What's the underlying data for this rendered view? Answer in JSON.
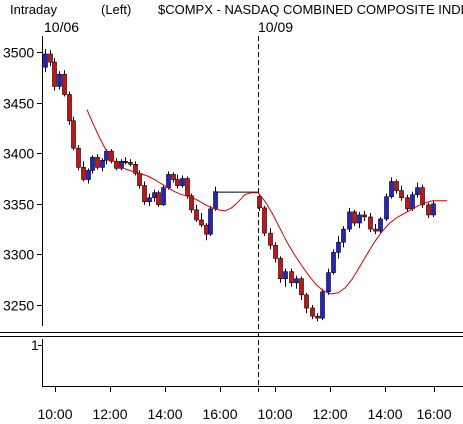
{
  "header": {
    "period": "Intraday",
    "scale_side": "(Left)",
    "symbol_title": "$COMPX - NASDAQ COMBINED COMPOSITE INDEX"
  },
  "colors": {
    "up_candle": "#2222cc",
    "down_candle": "#cc1111",
    "moving_average": "#dd0000",
    "axis": "#000000",
    "background": "#ffffff"
  },
  "chart_data": {
    "type": "candlestick",
    "title": "$COMPX - NASDAQ COMBINED COMPOSITE INDEX",
    "session_markers": [
      "10/06",
      "10/09"
    ],
    "ylim": [
      3225,
      3510
    ],
    "y_ticks": [
      "3500",
      "3450",
      "3400",
      "3350",
      "3300",
      "3250"
    ],
    "y_tick_values": [
      3500,
      3450,
      3400,
      3350,
      3300,
      3250
    ],
    "x_tick_labels": [
      "10:00",
      "12:00",
      "14:00",
      "16:00",
      "10:00",
      "12:00",
      "14:00",
      "16:00"
    ],
    "grid": false,
    "series": [
      {
        "day": "10/06",
        "bars": [
          {
            "o": 3485,
            "h": 3503,
            "l": 3480,
            "c": 3498
          },
          {
            "o": 3498,
            "h": 3502,
            "l": 3486,
            "c": 3490
          },
          {
            "o": 3490,
            "h": 3494,
            "l": 3462,
            "c": 3466
          },
          {
            "o": 3466,
            "h": 3481,
            "l": 3463,
            "c": 3478
          },
          {
            "o": 3478,
            "h": 3482,
            "l": 3456,
            "c": 3458
          },
          {
            "o": 3458,
            "h": 3461,
            "l": 3428,
            "c": 3432
          },
          {
            "o": 3432,
            "h": 3436,
            "l": 3403,
            "c": 3405
          },
          {
            "o": 3405,
            "h": 3408,
            "l": 3383,
            "c": 3386
          },
          {
            "o": 3386,
            "h": 3392,
            "l": 3372,
            "c": 3374
          },
          {
            "o": 3374,
            "h": 3385,
            "l": 3370,
            "c": 3383
          },
          {
            "o": 3383,
            "h": 3398,
            "l": 3380,
            "c": 3396
          },
          {
            "o": 3396,
            "h": 3399,
            "l": 3384,
            "c": 3386
          },
          {
            "o": 3386,
            "h": 3395,
            "l": 3382,
            "c": 3393
          },
          {
            "o": 3393,
            "h": 3404,
            "l": 3389,
            "c": 3402
          },
          {
            "o": 3402,
            "h": 3404,
            "l": 3390,
            "c": 3392
          },
          {
            "o": 3392,
            "h": 3395,
            "l": 3383,
            "c": 3385
          },
          {
            "o": 3385,
            "h": 3394,
            "l": 3383,
            "c": 3392
          },
          {
            "o": 3392,
            "h": 3396,
            "l": 3389,
            "c": 3391
          },
          {
            "o": 3391,
            "h": 3394,
            "l": 3387,
            "c": 3389
          },
          {
            "o": 3389,
            "h": 3392,
            "l": 3378,
            "c": 3380
          },
          {
            "o": 3380,
            "h": 3383,
            "l": 3365,
            "c": 3368
          },
          {
            "o": 3368,
            "h": 3372,
            "l": 3349,
            "c": 3352
          },
          {
            "o": 3352,
            "h": 3360,
            "l": 3348,
            "c": 3356
          },
          {
            "o": 3356,
            "h": 3364,
            "l": 3352,
            "c": 3361
          },
          {
            "o": 3361,
            "h": 3363,
            "l": 3347,
            "c": 3349
          },
          {
            "o": 3349,
            "h": 3368,
            "l": 3348,
            "c": 3366
          },
          {
            "o": 3366,
            "h": 3382,
            "l": 3364,
            "c": 3379
          },
          {
            "o": 3379,
            "h": 3381,
            "l": 3371,
            "c": 3374
          },
          {
            "o": 3374,
            "h": 3379,
            "l": 3365,
            "c": 3368
          },
          {
            "o": 3368,
            "h": 3378,
            "l": 3366,
            "c": 3375
          },
          {
            "o": 3375,
            "h": 3377,
            "l": 3355,
            "c": 3358
          },
          {
            "o": 3358,
            "h": 3360,
            "l": 3341,
            "c": 3344
          },
          {
            "o": 3344,
            "h": 3349,
            "l": 3332,
            "c": 3334
          },
          {
            "o": 3334,
            "h": 3341,
            "l": 3327,
            "c": 3329
          },
          {
            "o": 3329,
            "h": 3331,
            "l": 3314,
            "c": 3320
          },
          {
            "o": 3320,
            "h": 3348,
            "l": 3318,
            "c": 3345
          },
          {
            "o": 3345,
            "h": 3367,
            "l": 3343,
            "c": 3362
          }
        ]
      },
      {
        "day": "10/09",
        "bars": [
          {
            "o": 3357,
            "h": 3359,
            "l": 3343,
            "c": 3346
          },
          {
            "o": 3346,
            "h": 3348,
            "l": 3318,
            "c": 3321
          },
          {
            "o": 3321,
            "h": 3326,
            "l": 3305,
            "c": 3309
          },
          {
            "o": 3309,
            "h": 3312,
            "l": 3292,
            "c": 3296
          },
          {
            "o": 3296,
            "h": 3298,
            "l": 3272,
            "c": 3276
          },
          {
            "o": 3276,
            "h": 3286,
            "l": 3268,
            "c": 3283
          },
          {
            "o": 3283,
            "h": 3286,
            "l": 3268,
            "c": 3272
          },
          {
            "o": 3272,
            "h": 3279,
            "l": 3266,
            "c": 3276
          },
          {
            "o": 3276,
            "h": 3278,
            "l": 3255,
            "c": 3260
          },
          {
            "o": 3260,
            "h": 3262,
            "l": 3242,
            "c": 3247
          },
          {
            "o": 3247,
            "h": 3250,
            "l": 3236,
            "c": 3239
          },
          {
            "o": 3239,
            "h": 3242,
            "l": 3234,
            "c": 3237
          },
          {
            "o": 3237,
            "h": 3266,
            "l": 3235,
            "c": 3263
          },
          {
            "o": 3263,
            "h": 3286,
            "l": 3260,
            "c": 3282
          },
          {
            "o": 3282,
            "h": 3305,
            "l": 3280,
            "c": 3302
          },
          {
            "o": 3302,
            "h": 3318,
            "l": 3296,
            "c": 3312
          },
          {
            "o": 3312,
            "h": 3328,
            "l": 3307,
            "c": 3325
          },
          {
            "o": 3325,
            "h": 3346,
            "l": 3322,
            "c": 3342
          },
          {
            "o": 3342,
            "h": 3344,
            "l": 3328,
            "c": 3331
          },
          {
            "o": 3331,
            "h": 3342,
            "l": 3326,
            "c": 3339
          },
          {
            "o": 3339,
            "h": 3343,
            "l": 3333,
            "c": 3337
          },
          {
            "o": 3337,
            "h": 3341,
            "l": 3322,
            "c": 3325
          },
          {
            "o": 3325,
            "h": 3330,
            "l": 3320,
            "c": 3323
          },
          {
            "o": 3323,
            "h": 3337,
            "l": 3321,
            "c": 3335
          },
          {
            "o": 3335,
            "h": 3360,
            "l": 3333,
            "c": 3357
          },
          {
            "o": 3357,
            "h": 3376,
            "l": 3355,
            "c": 3372
          },
          {
            "o": 3372,
            "h": 3374,
            "l": 3360,
            "c": 3363
          },
          {
            "o": 3363,
            "h": 3368,
            "l": 3353,
            "c": 3356
          },
          {
            "o": 3356,
            "h": 3359,
            "l": 3342,
            "c": 3345
          },
          {
            "o": 3345,
            "h": 3362,
            "l": 3343,
            "c": 3359
          },
          {
            "o": 3359,
            "h": 3371,
            "l": 3356,
            "c": 3366
          },
          {
            "o": 3366,
            "h": 3369,
            "l": 3346,
            "c": 3349
          },
          {
            "o": 3349,
            "h": 3351,
            "l": 3336,
            "c": 3339
          },
          {
            "o": 3339,
            "h": 3353,
            "l": 3337,
            "c": 3350
          }
        ]
      }
    ],
    "moving_average": {
      "day1": [
        3443,
        3428,
        3414,
        3402,
        3393,
        3387,
        3384,
        3382,
        3380,
        3378,
        3375,
        3371,
        3367,
        3363,
        3360,
        3358,
        3356,
        3353,
        3349,
        3346,
        3344,
        3343,
        3346,
        3352,
        3359,
        3361,
        3361
      ],
      "day2": [
        3361,
        3352,
        3340,
        3326,
        3312,
        3300,
        3289,
        3279,
        3270,
        3264,
        3261,
        3262,
        3267,
        3276,
        3288,
        3300,
        3312,
        3322,
        3330,
        3336,
        3340,
        3344,
        3348,
        3351,
        3353,
        3353,
        3353
      ]
    },
    "lower_panel": {
      "label": "1"
    }
  }
}
